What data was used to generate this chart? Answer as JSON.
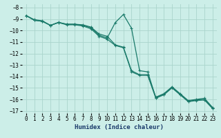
{
  "xlabel": "Humidex (Indice chaleur)",
  "background_color": "#cceee8",
  "grid_color": "#aad4cc",
  "line_color": "#1a7a6a",
  "x": [
    0,
    1,
    2,
    3,
    4,
    5,
    6,
    7,
    8,
    9,
    10,
    11,
    12,
    13,
    14,
    15,
    16,
    17,
    18,
    19,
    20,
    21,
    22,
    23
  ],
  "line1": [
    -8.7,
    -9.1,
    -9.2,
    -9.55,
    -9.3,
    -9.45,
    -9.45,
    -9.55,
    -9.75,
    -10.4,
    -10.65,
    -9.3,
    -8.6,
    -9.8,
    -13.5,
    -13.6,
    -15.85,
    -15.55,
    -14.95,
    -15.55,
    -16.15,
    -16.05,
    -16.0,
    -16.75
  ],
  "line2": [
    -8.7,
    -9.05,
    -9.15,
    -9.55,
    -9.28,
    -9.45,
    -9.45,
    -9.5,
    -9.7,
    -10.3,
    -10.5,
    -11.25,
    -11.45,
    -13.5,
    -13.85,
    -13.85,
    -15.8,
    -15.5,
    -14.9,
    -15.5,
    -16.1,
    -16.0,
    -15.9,
    -16.7
  ],
  "line3": [
    -8.7,
    -9.1,
    -9.2,
    -9.55,
    -9.3,
    -9.5,
    -9.5,
    -9.6,
    -9.85,
    -10.5,
    -10.75,
    -11.3,
    -11.5,
    -13.6,
    -13.9,
    -13.9,
    -15.9,
    -15.6,
    -15.0,
    -15.6,
    -16.2,
    -16.1,
    -16.05,
    -16.8
  ],
  "xlim": [
    -0.5,
    23.5
  ],
  "ylim": [
    -17.2,
    -7.7
  ],
  "yticks": [
    -8,
    -9,
    -10,
    -11,
    -12,
    -13,
    -14,
    -15,
    -16,
    -17
  ],
  "xticks": [
    0,
    1,
    2,
    3,
    4,
    5,
    6,
    7,
    8,
    9,
    10,
    11,
    12,
    13,
    14,
    15,
    16,
    17,
    18,
    19,
    20,
    21,
    22,
    23
  ],
  "marker": "+",
  "markersize": 3,
  "linewidth": 0.9,
  "tick_fontsize": 5.5,
  "xlabel_fontsize": 6.5
}
